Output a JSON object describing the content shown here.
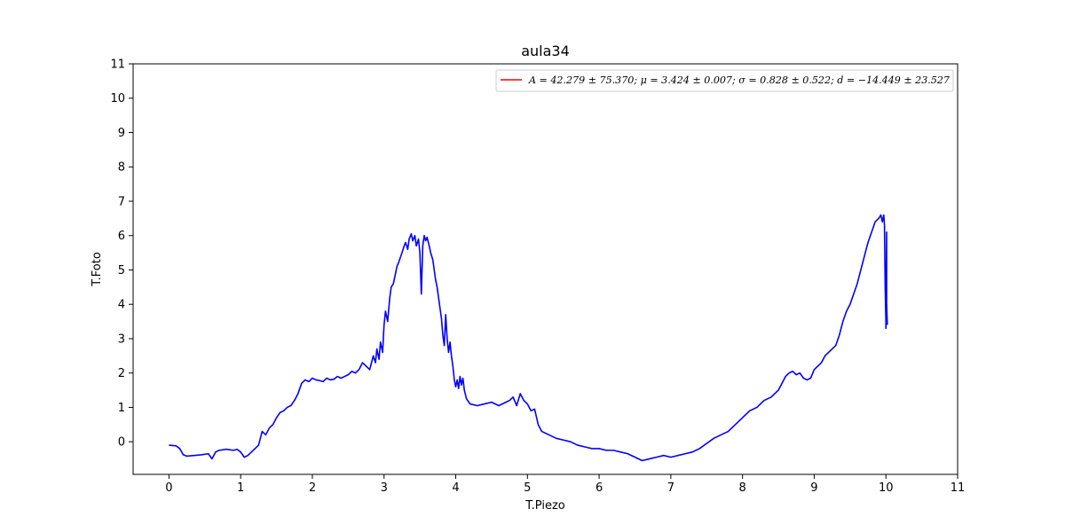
{
  "chart_data": {
    "type": "line",
    "title": "aula34",
    "xlabel": "T.Piezo",
    "ylabel": "T.Foto",
    "xlim": [
      -0.5,
      11
    ],
    "ylim": [
      -0.95,
      11
    ],
    "xticks": [
      "0",
      "1",
      "2",
      "3",
      "4",
      "5",
      "6",
      "7",
      "8",
      "9",
      "10",
      "11"
    ],
    "yticks": [
      "0",
      "1",
      "2",
      "3",
      "4",
      "5",
      "6",
      "7",
      "8",
      "9",
      "10",
      "11"
    ],
    "grid": false,
    "legend_position": "top-right",
    "series": [
      {
        "label": "",
        "color": "#0000ff",
        "x": [
          0.0,
          0.1,
          0.15,
          0.2,
          0.25,
          0.35,
          0.45,
          0.55,
          0.6,
          0.65,
          0.7,
          0.8,
          0.9,
          0.95,
          1.0,
          1.05,
          1.1,
          1.15,
          1.2,
          1.25,
          1.3,
          1.35,
          1.4,
          1.45,
          1.5,
          1.55,
          1.6,
          1.65,
          1.7,
          1.75,
          1.8,
          1.85,
          1.9,
          1.95,
          2.0,
          2.05,
          2.1,
          2.15,
          2.2,
          2.25,
          2.3,
          2.35,
          2.4,
          2.45,
          2.5,
          2.55,
          2.6,
          2.65,
          2.7,
          2.75,
          2.8,
          2.85,
          2.88,
          2.9,
          2.93,
          2.95,
          2.98,
          3.0,
          3.02,
          3.05,
          3.08,
          3.1,
          3.13,
          3.15,
          3.18,
          3.2,
          3.25,
          3.28,
          3.3,
          3.33,
          3.35,
          3.38,
          3.4,
          3.43,
          3.45,
          3.48,
          3.5,
          3.52,
          3.54,
          3.56,
          3.58,
          3.6,
          3.63,
          3.65,
          3.68,
          3.7,
          3.72,
          3.74,
          3.76,
          3.78,
          3.8,
          3.82,
          3.84,
          3.86,
          3.88,
          3.9,
          3.92,
          3.94,
          3.96,
          3.98,
          4.0,
          4.02,
          4.04,
          4.06,
          4.08,
          4.1,
          4.12,
          4.15,
          4.2,
          4.3,
          4.4,
          4.5,
          4.6,
          4.7,
          4.75,
          4.8,
          4.85,
          4.9,
          4.95,
          5.0,
          5.05,
          5.1,
          5.15,
          5.2,
          5.3,
          5.4,
          5.5,
          5.6,
          5.7,
          5.8,
          5.9,
          6.0,
          6.1,
          6.2,
          6.3,
          6.4,
          6.5,
          6.6,
          6.7,
          6.8,
          6.9,
          7.0,
          7.1,
          7.2,
          7.3,
          7.4,
          7.5,
          7.6,
          7.7,
          7.8,
          7.85,
          7.9,
          8.0,
          8.1,
          8.2,
          8.3,
          8.4,
          8.5,
          8.55,
          8.6,
          8.65,
          8.7,
          8.75,
          8.8,
          8.85,
          8.9,
          8.95,
          9.0,
          9.05,
          9.1,
          9.15,
          9.2,
          9.3,
          9.35,
          9.4,
          9.45,
          9.5,
          9.55,
          9.6,
          9.65,
          9.7,
          9.75,
          9.8,
          9.85,
          9.9,
          9.93,
          9.95,
          9.97,
          9.98,
          9.99,
          10.0,
          10.0,
          10.0,
          10.01,
          10.01,
          10.02
        ],
        "y": [
          -0.1,
          -0.12,
          -0.2,
          -0.38,
          -0.42,
          -0.4,
          -0.38,
          -0.35,
          -0.5,
          -0.3,
          -0.25,
          -0.22,
          -0.25,
          -0.22,
          -0.3,
          -0.45,
          -0.4,
          -0.3,
          -0.2,
          -0.1,
          0.3,
          0.2,
          0.4,
          0.5,
          0.7,
          0.85,
          0.9,
          1.0,
          1.05,
          1.2,
          1.4,
          1.7,
          1.8,
          1.75,
          1.85,
          1.8,
          1.78,
          1.75,
          1.85,
          1.8,
          1.82,
          1.9,
          1.85,
          1.9,
          1.95,
          2.05,
          2.0,
          2.1,
          2.3,
          2.2,
          2.1,
          2.5,
          2.3,
          2.7,
          2.4,
          2.9,
          2.6,
          3.4,
          3.8,
          3.5,
          4.2,
          4.5,
          4.6,
          4.8,
          5.1,
          5.2,
          5.5,
          5.7,
          5.8,
          5.6,
          5.9,
          6.05,
          5.85,
          6.0,
          5.7,
          5.9,
          5.5,
          4.3,
          5.7,
          6.0,
          5.85,
          5.95,
          5.7,
          5.5,
          5.3,
          5.0,
          4.7,
          4.5,
          4.2,
          3.9,
          3.6,
          3.1,
          2.8,
          3.7,
          3.0,
          2.6,
          2.9,
          2.5,
          2.2,
          1.8,
          1.6,
          1.8,
          1.55,
          1.9,
          1.65,
          1.85,
          1.5,
          1.25,
          1.1,
          1.05,
          1.1,
          1.15,
          1.05,
          1.15,
          1.2,
          1.3,
          1.05,
          1.4,
          1.2,
          1.1,
          0.9,
          0.95,
          0.5,
          0.3,
          0.2,
          0.1,
          0.05,
          0.0,
          -0.1,
          -0.15,
          -0.2,
          -0.2,
          -0.25,
          -0.25,
          -0.3,
          -0.35,
          -0.45,
          -0.55,
          -0.5,
          -0.45,
          -0.4,
          -0.45,
          -0.4,
          -0.35,
          -0.3,
          -0.2,
          -0.05,
          0.1,
          0.2,
          0.3,
          0.4,
          0.5,
          0.7,
          0.9,
          1.0,
          1.2,
          1.3,
          1.5,
          1.7,
          1.9,
          2.0,
          2.05,
          1.95,
          2.0,
          1.85,
          1.8,
          1.85,
          2.1,
          2.2,
          2.3,
          2.5,
          2.6,
          2.8,
          3.1,
          3.5,
          3.8,
          4.0,
          4.3,
          4.6,
          5.0,
          5.4,
          5.8,
          6.1,
          6.4,
          6.5,
          6.6,
          6.4,
          6.6,
          6.3,
          4.5,
          3.5,
          3.3,
          3.6,
          6.1,
          4.0,
          3.4
        ]
      },
      {
        "label": "A = 42.279 ± 75.370; μ = 3.424 ± 0.007; σ = 0.828 ± 0.522; d = −14.449 ± 23.527",
        "color": "#ff0000",
        "model": "gaussian",
        "A": 42.279,
        "mu": 3.424,
        "sigma": 0.828,
        "d": -14.449,
        "x_range": [
          3.0,
          4.0
        ]
      }
    ]
  }
}
